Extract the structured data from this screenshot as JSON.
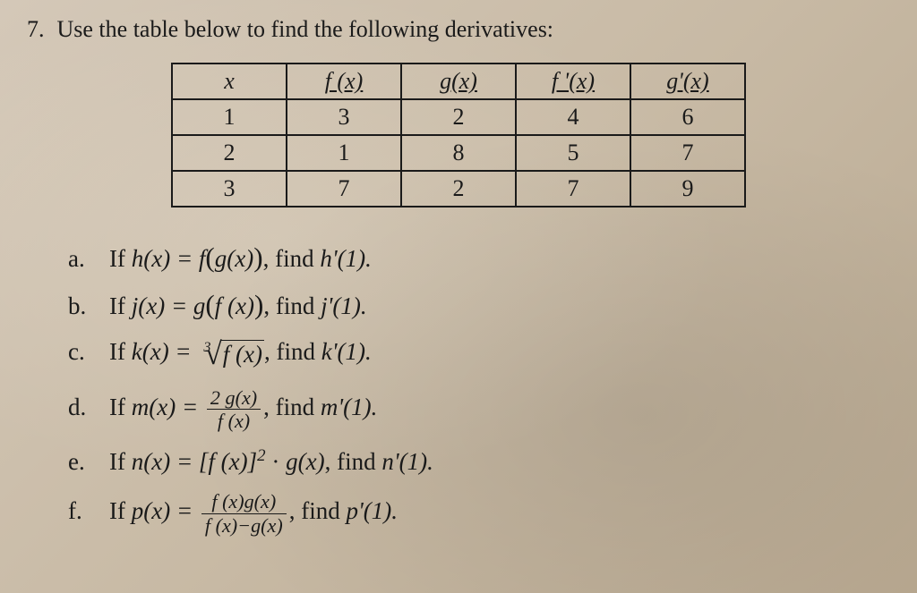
{
  "prompt": {
    "number": "7.",
    "text": "Use the table below to find the following derivatives:"
  },
  "table": {
    "headers": {
      "x": "x",
      "fx": "f (x)",
      "gx": "g(x)",
      "fpx": "f '(x)",
      "gpx": "g'(x)"
    },
    "rows": [
      {
        "x": "1",
        "fx": "3",
        "gx": "2",
        "fpx": "4",
        "gpx": "6"
      },
      {
        "x": "2",
        "fx": "1",
        "gx": "8",
        "fpx": "5",
        "gpx": "7"
      },
      {
        "x": "3",
        "fx": "7",
        "gx": "2",
        "fpx": "7",
        "gpx": "9"
      }
    ]
  },
  "questions": {
    "a": {
      "label": "a.",
      "prefix": "If ",
      "fn": "h(x) = f",
      "inner": "g(x)",
      "suffix": ", find ",
      "find": "h'(1)."
    },
    "b": {
      "label": "b.",
      "prefix": "If ",
      "fn": "j(x) = g",
      "inner": "f (x)",
      "suffix": ", find ",
      "find": "j'(1)."
    },
    "c": {
      "label": "c.",
      "prefix": "If ",
      "fn": "k(x) =",
      "idx": "3",
      "body": "f (x)",
      "suffix": ", find ",
      "find": "k'(1)."
    },
    "d": {
      "label": "d.",
      "prefix": "If ",
      "fn": "m(x) =",
      "num": "2 g(x)",
      "den": "f (x)",
      "suffix": ", find ",
      "find": "m'(1)."
    },
    "e": {
      "label": "e.",
      "prefix": "If ",
      "fn": "n(x) = [f (x)]",
      "exp": "2",
      "dot": " · ",
      "g": "g(x)",
      "suffix": ", find ",
      "find": "n'(1)."
    },
    "f": {
      "label": "f.",
      "prefix": "If ",
      "fn": "p(x) =",
      "num": "f (x)g(x)",
      "den": "f (x)−g(x)",
      "suffix": ", find ",
      "find": "p'(1)."
    }
  }
}
